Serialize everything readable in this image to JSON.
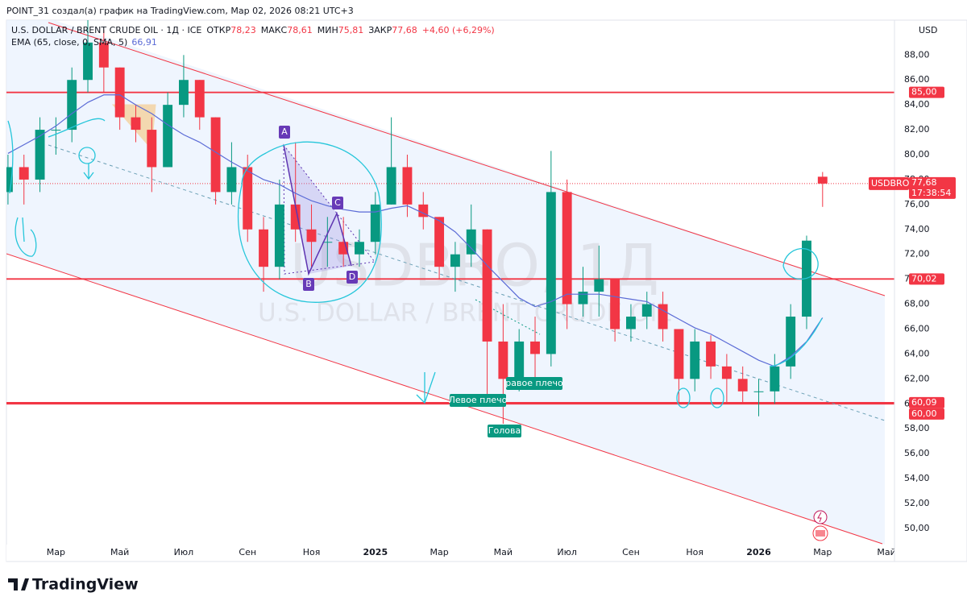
{
  "header": {
    "caption": "POINT_31 создал(а) график на TradingView.com, Мар 02, 2026 08:21 UTC+3",
    "title": "U.S. DOLLAR / BRENT CRUDE OIL · 1Д · ICE",
    "ohlc": [
      {
        "label": "ОТКР",
        "value": "78,23"
      },
      {
        "label": "МАКС",
        "value": "78,61"
      },
      {
        "label": "МИН",
        "value": "75,81"
      },
      {
        "label": "ЗАКР",
        "value": "77,68"
      }
    ],
    "change": "+4,60 (+6,29%)",
    "currency": "USD"
  },
  "watermark": {
    "symbol": "USDBRO, 1Д",
    "name": "U.S. DOLLAR / BRENT CRUDE OIL"
  },
  "annotations": {
    "pattern_points": [
      "A",
      "B",
      "C",
      "D"
    ],
    "left_shoulder": "Левое плечо",
    "right_shoulder": "равое плечо",
    "head": "Голова"
  },
  "footer": {
    "brand": "TradingView"
  },
  "chart_data": {
    "type": "candlestick",
    "categories": [
      null,
      null,
      null,
      "Мар",
      null,
      null,
      null,
      "Май",
      null,
      null,
      null,
      "Июл",
      null,
      null,
      null,
      "Сен",
      null,
      null,
      null,
      "Ноя",
      null,
      null,
      null,
      "2025",
      null,
      null,
      null,
      "Мар",
      null,
      null,
      null,
      "Май",
      null,
      null,
      null,
      "Июл",
      null,
      null,
      null,
      "Сен",
      null,
      null,
      null,
      "Ноя",
      null,
      null,
      null,
      "2026",
      null,
      null,
      null,
      "Мар",
      null,
      null,
      null,
      "Май"
    ],
    "open": [
      77,
      79,
      78,
      82,
      82,
      86,
      89,
      87,
      83,
      82,
      79,
      84,
      86,
      83,
      77,
      79,
      74,
      71,
      76,
      74,
      73,
      73,
      72,
      73,
      76,
      79,
      76,
      75,
      71,
      72,
      74,
      65,
      62,
      65,
      64,
      77,
      68,
      69,
      70,
      66,
      67,
      68,
      66,
      62,
      65,
      63,
      62,
      61,
      61,
      63,
      67,
      78.23,
      null,
      null,
      null,
      null
    ],
    "high": [
      80,
      80,
      83,
      83,
      87,
      91,
      90,
      87,
      84,
      83,
      85,
      88,
      86,
      83,
      81,
      80,
      75,
      78,
      81,
      76,
      75,
      75,
      74,
      77,
      83,
      80,
      77,
      75,
      73,
      76,
      74,
      68,
      66,
      67,
      80.3,
      78,
      71,
      72.7,
      70,
      68,
      69,
      69,
      66,
      66,
      65.5,
      64,
      63,
      62,
      64,
      68,
      73.5,
      78.61,
      null,
      null,
      null,
      null
    ],
    "low": [
      76,
      76,
      77,
      80,
      81,
      85,
      85,
      82,
      81,
      77,
      79,
      83,
      82,
      76,
      76,
      73,
      69,
      70,
      73,
      71,
      71,
      71,
      71,
      72,
      76,
      75,
      74,
      70,
      69,
      71,
      60,
      58.4,
      61,
      62,
      63,
      66,
      67,
      67,
      65,
      65,
      66,
      65,
      60,
      61,
      62,
      60,
      60,
      59,
      60,
      62,
      66,
      75.81,
      null,
      null,
      null,
      null
    ],
    "close": [
      79,
      78,
      82,
      82,
      86,
      89,
      87,
      83,
      82,
      79,
      84,
      86,
      83,
      77,
      79,
      74,
      71,
      76,
      74,
      73,
      73,
      72,
      73,
      76,
      79,
      76,
      75,
      71,
      72,
      74,
      65,
      62,
      65,
      64,
      77,
      68,
      69,
      70,
      66,
      67,
      68,
      66,
      62,
      65,
      63,
      62,
      61,
      61,
      63,
      67,
      73.1,
      77.68,
      null,
      null,
      null,
      null
    ],
    "up_color": "#089981",
    "down_color": "#f23645",
    "ema": {
      "name": "EMA (65, close, 0, SMA, 5)",
      "value_label": "66,91",
      "color": "#5b6bd6",
      "values": [
        80.1,
        80.8,
        81.5,
        82.3,
        83.3,
        84.2,
        84.8,
        84.8,
        84,
        83.3,
        82.4,
        81.6,
        81,
        80.2,
        79.4,
        78.7,
        78,
        77.6,
        76.9,
        76.3,
        75.9,
        75.6,
        75.4,
        75.4,
        75.7,
        75.9,
        75.3,
        74.7,
        73.8,
        72.5,
        71.1,
        69.8,
        68.5,
        67.8,
        68.2,
        68.8,
        68.8,
        68.8,
        68.6,
        68.4,
        68.2,
        67.5,
        66.8,
        66.1,
        65.6,
        64.9,
        64.2,
        63.5,
        63,
        63.8,
        65,
        66.91,
        null,
        null,
        null,
        null
      ]
    },
    "ylim": [
      48.7,
      90.8
    ],
    "yticks": [
      {
        "value": 50,
        "label": "50,00"
      },
      {
        "value": 52,
        "label": "52,00"
      },
      {
        "value": 54,
        "label": "54,00"
      },
      {
        "value": 56,
        "label": "56,00"
      },
      {
        "value": 58,
        "label": "58,00"
      },
      {
        "value": 60,
        "label": "60,00"
      },
      {
        "value": 62,
        "label": "62,00"
      },
      {
        "value": 64,
        "label": "64,00"
      },
      {
        "value": 66,
        "label": "66,00"
      },
      {
        "value": 68,
        "label": "68,00"
      },
      {
        "value": 70,
        "label": "70,00"
      },
      {
        "value": 72,
        "label": "72,00"
      },
      {
        "value": 74,
        "label": "74,00"
      },
      {
        "value": 76,
        "label": "76,00"
      },
      {
        "value": 78,
        "label": "78,00"
      },
      {
        "value": 80,
        "label": "80,00"
      },
      {
        "value": 82,
        "label": "82,00"
      },
      {
        "value": 84,
        "label": "84,00"
      },
      {
        "value": 86,
        "label": "86,00"
      },
      {
        "value": 88,
        "label": "88,00"
      }
    ],
    "levels": [
      {
        "value": 85,
        "label": "85,00"
      },
      {
        "value": 70.02,
        "label": "70,02"
      },
      {
        "value": 60.09,
        "label": "60,09"
      },
      {
        "value": 60,
        "label": "60,00"
      }
    ],
    "level_color": "#f23645",
    "last_price": {
      "value": 77.68,
      "label": "77,68",
      "symbol": "USDBRO",
      "countdown": "17:38:54"
    },
    "grid": false
  }
}
